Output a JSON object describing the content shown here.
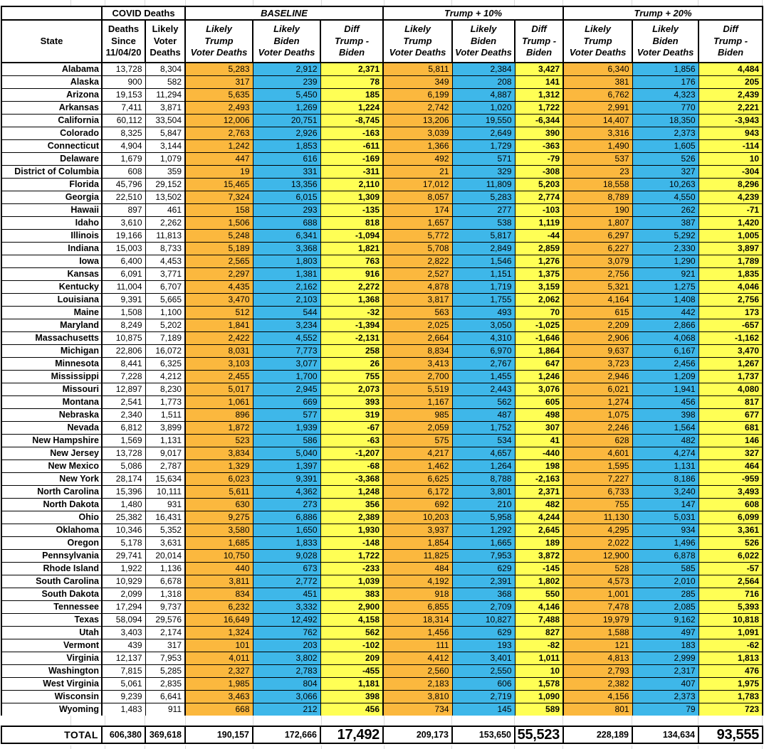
{
  "groups": {
    "covid": "COVID Deaths",
    "baseline": "BASELINE",
    "t10": "Trump + 10%",
    "t20": "Trump + 20%"
  },
  "columns": {
    "state": "State",
    "deaths_since": "Deaths\nSince\n11/04/20",
    "likely_voter": "Likely\nVoter\nDeaths",
    "trump": "Likely\nTrump\nVoter Deaths",
    "biden": "Likely\nBiden\nVoter Deaths",
    "diff": "Diff\nTrump -\nBiden"
  },
  "colors": {
    "trump_bg": "#FBB83E",
    "biden_bg": "#3EB7E9",
    "diff_bg": "#FFFF55"
  },
  "rows": [
    [
      "Alabama",
      "13,728",
      "8,304",
      "5,283",
      "2,912",
      "2,371",
      "5,811",
      "2,384",
      "3,427",
      "6,340",
      "1,856",
      "4,484"
    ],
    [
      "Alaska",
      "900",
      "582",
      "317",
      "239",
      "78",
      "349",
      "208",
      "141",
      "381",
      "176",
      "205"
    ],
    [
      "Arizona",
      "19,153",
      "11,294",
      "5,635",
      "5,450",
      "185",
      "6,199",
      "4,887",
      "1,312",
      "6,762",
      "4,323",
      "2,439"
    ],
    [
      "Arkansas",
      "7,411",
      "3,871",
      "2,493",
      "1,269",
      "1,224",
      "2,742",
      "1,020",
      "1,722",
      "2,991",
      "770",
      "2,221"
    ],
    [
      "California",
      "60,112",
      "33,504",
      "12,006",
      "20,751",
      "-8,745",
      "13,206",
      "19,550",
      "-6,344",
      "14,407",
      "18,350",
      "-3,943"
    ],
    [
      "Colorado",
      "8,325",
      "5,847",
      "2,763",
      "2,926",
      "-163",
      "3,039",
      "2,649",
      "390",
      "3,316",
      "2,373",
      "943"
    ],
    [
      "Connecticut",
      "4,904",
      "3,144",
      "1,242",
      "1,853",
      "-611",
      "1,366",
      "1,729",
      "-363",
      "1,490",
      "1,605",
      "-114"
    ],
    [
      "Delaware",
      "1,679",
      "1,079",
      "447",
      "616",
      "-169",
      "492",
      "571",
      "-79",
      "537",
      "526",
      "10"
    ],
    [
      "District of Columbia",
      "608",
      "359",
      "19",
      "331",
      "-311",
      "21",
      "329",
      "-308",
      "23",
      "327",
      "-304"
    ],
    [
      "Florida",
      "45,796",
      "29,152",
      "15,465",
      "13,356",
      "2,110",
      "17,012",
      "11,809",
      "5,203",
      "18,558",
      "10,263",
      "8,296"
    ],
    [
      "Georgia",
      "22,510",
      "13,502",
      "7,324",
      "6,015",
      "1,309",
      "8,057",
      "5,283",
      "2,774",
      "8,789",
      "4,550",
      "4,239"
    ],
    [
      "Hawaii",
      "897",
      "461",
      "158",
      "293",
      "-135",
      "174",
      "277",
      "-103",
      "190",
      "262",
      "-71"
    ],
    [
      "Idaho",
      "3,610",
      "2,262",
      "1,506",
      "688",
      "818",
      "1,657",
      "538",
      "1,119",
      "1,807",
      "387",
      "1,420"
    ],
    [
      "Illinois",
      "19,166",
      "11,813",
      "5,248",
      "6,341",
      "-1,094",
      "5,772",
      "5,817",
      "-44",
      "6,297",
      "5,292",
      "1,005"
    ],
    [
      "Indiana",
      "15,003",
      "8,733",
      "5,189",
      "3,368",
      "1,821",
      "5,708",
      "2,849",
      "2,859",
      "6,227",
      "2,330",
      "3,897"
    ],
    [
      "Iowa",
      "6,400",
      "4,453",
      "2,565",
      "1,803",
      "763",
      "2,822",
      "1,546",
      "1,276",
      "3,079",
      "1,290",
      "1,789"
    ],
    [
      "Kansas",
      "6,091",
      "3,771",
      "2,297",
      "1,381",
      "916",
      "2,527",
      "1,151",
      "1,375",
      "2,756",
      "921",
      "1,835"
    ],
    [
      "Kentucky",
      "11,004",
      "6,707",
      "4,435",
      "2,162",
      "2,272",
      "4,878",
      "1,719",
      "3,159",
      "5,321",
      "1,275",
      "4,046"
    ],
    [
      "Louisiana",
      "9,391",
      "5,665",
      "3,470",
      "2,103",
      "1,368",
      "3,817",
      "1,755",
      "2,062",
      "4,164",
      "1,408",
      "2,756"
    ],
    [
      "Maine",
      "1,508",
      "1,100",
      "512",
      "544",
      "-32",
      "563",
      "493",
      "70",
      "615",
      "442",
      "173"
    ],
    [
      "Maryland",
      "8,249",
      "5,202",
      "1,841",
      "3,234",
      "-1,394",
      "2,025",
      "3,050",
      "-1,025",
      "2,209",
      "2,866",
      "-657"
    ],
    [
      "Massachusetts",
      "10,875",
      "7,189",
      "2,422",
      "4,552",
      "-2,131",
      "2,664",
      "4,310",
      "-1,646",
      "2,906",
      "4,068",
      "-1,162"
    ],
    [
      "Michigan",
      "22,806",
      "16,072",
      "8,031",
      "7,773",
      "258",
      "8,834",
      "6,970",
      "1,864",
      "9,637",
      "6,167",
      "3,470"
    ],
    [
      "Minnesota",
      "8,441",
      "6,325",
      "3,103",
      "3,077",
      "26",
      "3,413",
      "2,767",
      "647",
      "3,723",
      "2,456",
      "1,267"
    ],
    [
      "Mississippi",
      "7,228",
      "4,212",
      "2,455",
      "1,700",
      "755",
      "2,700",
      "1,455",
      "1,246",
      "2,946",
      "1,209",
      "1,737"
    ],
    [
      "Missouri",
      "12,897",
      "8,230",
      "5,017",
      "2,945",
      "2,073",
      "5,519",
      "2,443",
      "3,076",
      "6,021",
      "1,941",
      "4,080"
    ],
    [
      "Montana",
      "2,541",
      "1,773",
      "1,061",
      "669",
      "393",
      "1,167",
      "562",
      "605",
      "1,274",
      "456",
      "817"
    ],
    [
      "Nebraska",
      "2,340",
      "1,511",
      "896",
      "577",
      "319",
      "985",
      "487",
      "498",
      "1,075",
      "398",
      "677"
    ],
    [
      "Nevada",
      "6,812",
      "3,899",
      "1,872",
      "1,939",
      "-67",
      "2,059",
      "1,752",
      "307",
      "2,246",
      "1,564",
      "681"
    ],
    [
      "New Hampshire",
      "1,569",
      "1,131",
      "523",
      "586",
      "-63",
      "575",
      "534",
      "41",
      "628",
      "482",
      "146"
    ],
    [
      "New Jersey",
      "13,728",
      "9,017",
      "3,834",
      "5,040",
      "-1,207",
      "4,217",
      "4,657",
      "-440",
      "4,601",
      "4,274",
      "327"
    ],
    [
      "New Mexico",
      "5,086",
      "2,787",
      "1,329",
      "1,397",
      "-68",
      "1,462",
      "1,264",
      "198",
      "1,595",
      "1,131",
      "464"
    ],
    [
      "New York",
      "28,174",
      "15,634",
      "6,023",
      "9,391",
      "-3,368",
      "6,625",
      "8,788",
      "-2,163",
      "7,227",
      "8,186",
      "-959"
    ],
    [
      "North Carolina",
      "15,396",
      "10,111",
      "5,611",
      "4,362",
      "1,248",
      "6,172",
      "3,801",
      "2,371",
      "6,733",
      "3,240",
      "3,493"
    ],
    [
      "North Dakota",
      "1,480",
      "931",
      "630",
      "273",
      "356",
      "692",
      "210",
      "482",
      "755",
      "147",
      "608"
    ],
    [
      "Ohio",
      "25,382",
      "16,431",
      "9,275",
      "6,886",
      "2,389",
      "10,203",
      "5,958",
      "4,244",
      "11,130",
      "5,031",
      "6,099"
    ],
    [
      "Oklahoma",
      "10,346",
      "5,352",
      "3,580",
      "1,650",
      "1,930",
      "3,937",
      "1,292",
      "2,645",
      "4,295",
      "934",
      "3,361"
    ],
    [
      "Oregon",
      "5,178",
      "3,631",
      "1,685",
      "1,833",
      "-148",
      "1,854",
      "1,665",
      "189",
      "2,022",
      "1,496",
      "526"
    ],
    [
      "Pennsylvania",
      "29,741",
      "20,014",
      "10,750",
      "9,028",
      "1,722",
      "11,825",
      "7,953",
      "3,872",
      "12,900",
      "6,878",
      "6,022"
    ],
    [
      "Rhode Island",
      "1,922",
      "1,136",
      "440",
      "673",
      "-233",
      "484",
      "629",
      "-145",
      "528",
      "585",
      "-57"
    ],
    [
      "South Carolina",
      "10,929",
      "6,678",
      "3,811",
      "2,772",
      "1,039",
      "4,192",
      "2,391",
      "1,802",
      "4,573",
      "2,010",
      "2,564"
    ],
    [
      "South Dakota",
      "2,099",
      "1,318",
      "834",
      "451",
      "383",
      "918",
      "368",
      "550",
      "1,001",
      "285",
      "716"
    ],
    [
      "Tennessee",
      "17,294",
      "9,737",
      "6,232",
      "3,332",
      "2,900",
      "6,855",
      "2,709",
      "4,146",
      "7,478",
      "2,085",
      "5,393"
    ],
    [
      "Texas",
      "58,094",
      "29,576",
      "16,649",
      "12,492",
      "4,158",
      "18,314",
      "10,827",
      "7,488",
      "19,979",
      "9,162",
      "10,818"
    ],
    [
      "Utah",
      "3,403",
      "2,174",
      "1,324",
      "762",
      "562",
      "1,456",
      "629",
      "827",
      "1,588",
      "497",
      "1,091"
    ],
    [
      "Vermont",
      "439",
      "317",
      "101",
      "203",
      "-102",
      "111",
      "193",
      "-82",
      "121",
      "183",
      "-62"
    ],
    [
      "Virginia",
      "12,137",
      "7,953",
      "4,011",
      "3,802",
      "209",
      "4,412",
      "3,401",
      "1,011",
      "4,813",
      "2,999",
      "1,813"
    ],
    [
      "Washington",
      "7,815",
      "5,285",
      "2,327",
      "2,783",
      "-455",
      "2,560",
      "2,550",
      "10",
      "2,793",
      "2,317",
      "476"
    ],
    [
      "West Virginia",
      "5,061",
      "2,835",
      "1,985",
      "804",
      "1,181",
      "2,183",
      "606",
      "1,578",
      "2,382",
      "407",
      "1,975"
    ],
    [
      "Wisconsin",
      "9,239",
      "6,641",
      "3,463",
      "3,066",
      "398",
      "3,810",
      "2,719",
      "1,090",
      "4,156",
      "2,373",
      "1,783"
    ],
    [
      "Wyoming",
      "1,483",
      "911",
      "668",
      "212",
      "456",
      "734",
      "145",
      "589",
      "801",
      "79",
      "723"
    ]
  ],
  "total": {
    "label": "TOTAL",
    "values": [
      "606,380",
      "369,618",
      "190,157",
      "172,666",
      "17,492",
      "209,173",
      "153,650",
      "55,523",
      "228,189",
      "134,634",
      "93,555"
    ]
  }
}
